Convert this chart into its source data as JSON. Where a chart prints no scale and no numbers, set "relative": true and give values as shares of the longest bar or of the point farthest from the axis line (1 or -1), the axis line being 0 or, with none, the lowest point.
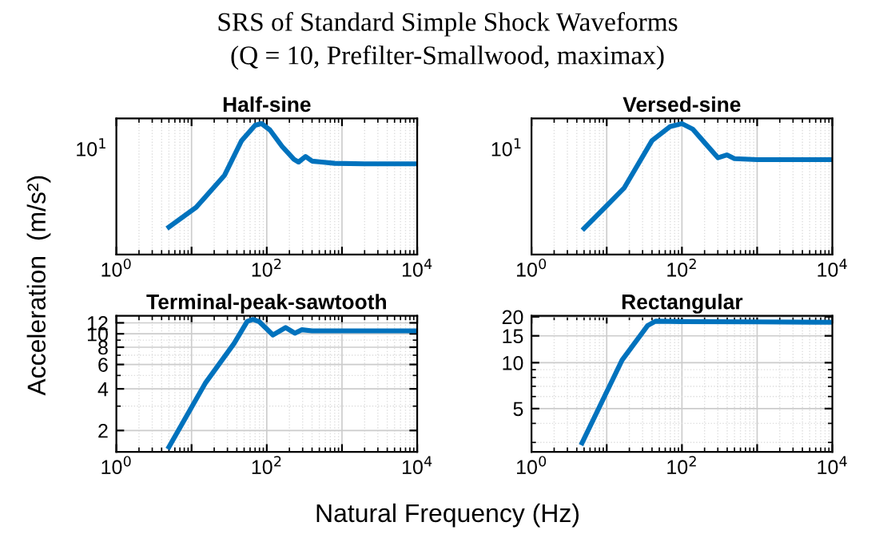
{
  "chart_data": [
    {
      "type": "line",
      "title": "Half-sine",
      "log": "x",
      "grid": "x",
      "relative": true,
      "annotations": [
        "SRS of Standard Simple Shock Waveforms",
        "(Q = 10, Prefilter-Smallwood, maximax)",
        "10$^{1}$"
      ],
      "ylabel": "Acceleration  (m/s²)",
      "xlim": [
        1,
        10000
      ],
      "xticks": [
        {
          "value": 1,
          "label": "10$^{0}$"
        },
        {
          "value": 10,
          "label": null
        },
        {
          "value": 100,
          "label": "10$^{2}$"
        },
        {
          "value": 1000,
          "label": null
        },
        {
          "value": 10000,
          "label": "10$^{4}$"
        }
      ],
      "series": [
        {
          "color": "#0072bd",
          "x": [
            5,
            11.5,
            27.5,
            46,
            70,
            85,
            110,
            160,
            230,
            265,
            327,
            400,
            535,
            800,
            2000,
            10000
          ],
          "values": [
            0.21,
            0.36,
            0.606,
            0.867,
            0.986,
            1,
            0.951,
            0.825,
            0.727,
            0.706,
            0.748,
            0.713,
            0.706,
            0.696,
            0.692,
            0.692
          ]
        }
      ]
    },
    {
      "type": "line",
      "title": "Versed-sine",
      "log": "x",
      "grid": "x",
      "relative": true,
      "annotations": [
        "10$^{1}$"
      ],
      "xlim": [
        1,
        10000
      ],
      "xticks": [
        {
          "value": 1,
          "label": "10$^{0}$"
        },
        {
          "value": 10,
          "label": null
        },
        {
          "value": 100,
          "label": "10$^{2}$"
        },
        {
          "value": 1000,
          "label": null
        },
        {
          "value": 10000,
          "label": "10$^{4}$"
        }
      ],
      "series": [
        {
          "color": "#0072bd",
          "x": [
            5,
            17,
            40,
            70,
            100,
            140,
            200,
            302,
            395,
            500,
            1000,
            10000
          ],
          "values": [
            0.199,
            0.507,
            0.87,
            0.978,
            1,
            0.957,
            0.855,
            0.739,
            0.761,
            0.732,
            0.725,
            0.725
          ]
        }
      ]
    },
    {
      "type": "line",
      "title": "Terminal-peak-sawtooth",
      "log": "xy",
      "grid": true,
      "xlabel": "Natural Frequency (Hz)",
      "xlim": [
        1,
        10000
      ],
      "xticks": [
        {
          "value": 1,
          "label": "10$^{0}$"
        },
        {
          "value": 10,
          "label": null
        },
        {
          "value": 100,
          "label": "10$^{2}$"
        },
        {
          "value": 1000,
          "label": null
        },
        {
          "value": 10000,
          "label": "10$^{4}$"
        }
      ],
      "ylim": [
        1.4,
        13.5
      ],
      "yticks": [
        2,
        4,
        6,
        8,
        10,
        12
      ],
      "series": [
        {
          "color": "#0072bd",
          "x": [
            5,
            15.2,
            36.7,
            55,
            65.7,
            80,
            121,
            178,
            236,
            294,
            400,
            1000,
            10000
          ],
          "values": [
            1.52,
            4.39,
            8.5,
            12.3,
            12.7,
            12.2,
            9.8,
            11.1,
            10.1,
            10.7,
            10.5,
            10.5,
            10.5
          ]
        }
      ]
    },
    {
      "type": "line",
      "title": "Rectangular",
      "log": "xy",
      "grid": true,
      "xlim": [
        1,
        10000
      ],
      "xticks": [
        {
          "value": 1,
          "label": "10$^{0}$"
        },
        {
          "value": 10,
          "label": null
        },
        {
          "value": 100,
          "label": "10$^{2}$"
        },
        {
          "value": 1000,
          "label": null
        },
        {
          "value": 10000,
          "label": "10$^{4}$"
        }
      ],
      "ylim": [
        2.6,
        20.3
      ],
      "yticks": [
        5,
        10,
        15,
        20
      ],
      "series": [
        {
          "color": "#0072bd",
          "x": [
            4.7,
            16,
            35,
            44.6,
            100,
            1000,
            9400
          ],
          "values": [
            2.98,
            10.4,
            17.5,
            18.7,
            18.6,
            18.5,
            18.4
          ]
        }
      ]
    }
  ]
}
